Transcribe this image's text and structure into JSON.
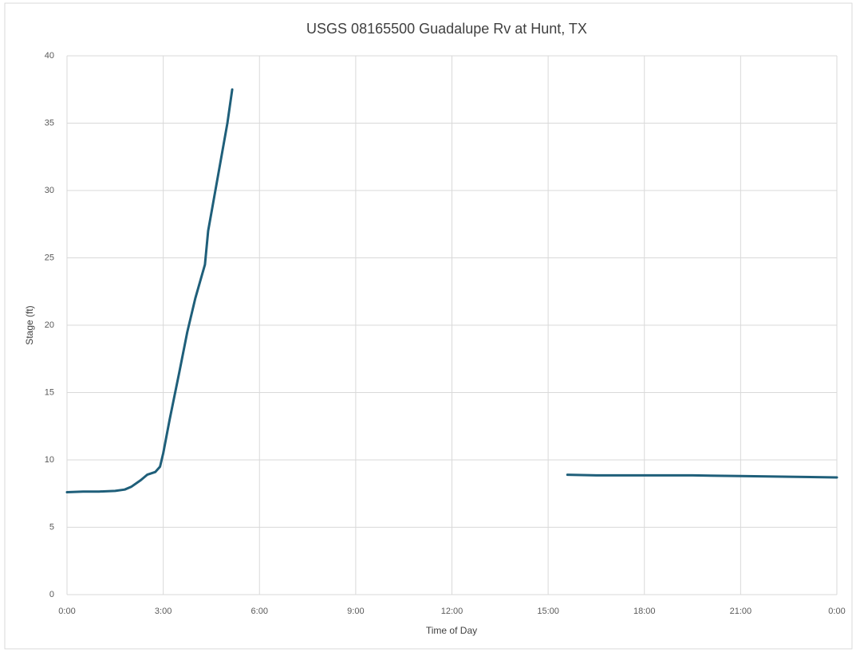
{
  "chart_data": {
    "type": "line",
    "title": "USGS 08165500 Guadalupe Rv at Hunt, TX",
    "x_label": "Time of Day",
    "y_label": "Stage (ft)",
    "x": [
      0,
      0.5,
      1.0,
      1.5,
      1.8,
      2.0,
      2.3,
      2.5,
      2.75,
      2.9,
      3.0,
      3.2,
      3.5,
      3.75,
      4.0,
      4.3,
      4.4,
      4.7,
      5.0,
      5.15,
      10,
      15.6,
      16.5,
      18,
      19.5,
      21,
      22.5,
      24
    ],
    "series": [
      {
        "name": "Stage",
        "color": "#1f5f7a",
        "values": [
          7.6,
          7.65,
          7.65,
          7.7,
          7.8,
          8.0,
          8.5,
          8.9,
          9.1,
          9.5,
          10.5,
          13,
          16.5,
          19.5,
          22,
          24.5,
          27,
          31,
          35,
          37.5,
          null,
          8.9,
          8.85,
          8.85,
          8.85,
          8.8,
          8.75,
          8.7
        ]
      }
    ],
    "xlim": [
      0,
      24
    ],
    "xticks": [
      {
        "value": 0,
        "label": "0:00"
      },
      {
        "value": 3,
        "label": "3:00"
      },
      {
        "value": 6,
        "label": "6:00"
      },
      {
        "value": 9,
        "label": "9:00"
      },
      {
        "value": 12,
        "label": "12:00"
      },
      {
        "value": 15,
        "label": "15:00"
      },
      {
        "value": 18,
        "label": "18:00"
      },
      {
        "value": 21,
        "label": "21:00"
      },
      {
        "value": 24,
        "label": "0:00"
      }
    ],
    "ylim": [
      0,
      40
    ],
    "yticks": [
      0,
      5,
      10,
      15,
      20,
      25,
      30,
      35,
      40
    ],
    "grid": true
  }
}
